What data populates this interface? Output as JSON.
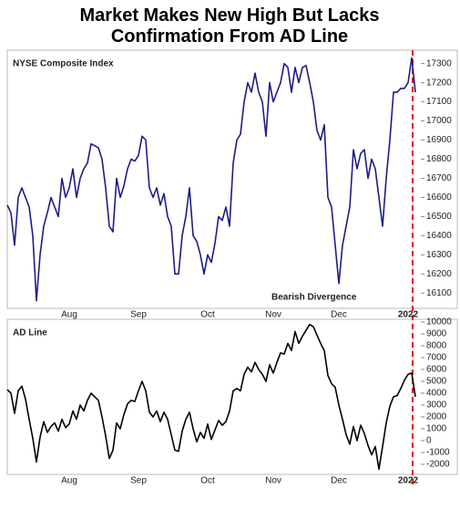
{
  "title": "Market Makes New High But Lacks Confirmation From AD Line",
  "chart_data": [
    {
      "type": "line",
      "title": "NYSE Composite Index",
      "annotation": "Bearish Divergence",
      "categories": [
        null,
        null,
        null,
        null,
        null,
        null,
        null,
        null,
        null,
        null,
        null,
        null,
        null,
        null,
        null,
        null,
        null,
        "Aug",
        null,
        null,
        null,
        null,
        null,
        null,
        null,
        null,
        null,
        null,
        null,
        null,
        null,
        null,
        null,
        null,
        null,
        null,
        "Sep",
        null,
        null,
        null,
        null,
        null,
        null,
        null,
        null,
        null,
        null,
        null,
        null,
        null,
        null,
        null,
        null,
        null,
        null,
        "Oct",
        null,
        null,
        null,
        null,
        null,
        null,
        null,
        null,
        null,
        null,
        null,
        null,
        null,
        null,
        null,
        null,
        null,
        "Nov",
        null,
        null,
        null,
        null,
        null,
        null,
        null,
        null,
        null,
        null,
        null,
        null,
        null,
        null,
        null,
        null,
        null,
        "Dec",
        null,
        null,
        null,
        null,
        null,
        null,
        null,
        null,
        null,
        null,
        null,
        null,
        null,
        null,
        null,
        null,
        null,
        null,
        "2022",
        null,
        null
      ],
      "series": [
        {
          "name": "NYSE Composite Index",
          "color": "#1c1c8a",
          "values": [
            16560,
            16520,
            16350,
            16600,
            16650,
            16600,
            16550,
            16400,
            16060,
            16300,
            16450,
            16520,
            16600,
            16550,
            16500,
            16700,
            16600,
            16650,
            16750,
            16600,
            16700,
            16750,
            16780,
            16880,
            16870,
            16860,
            16800,
            16650,
            16450,
            16420,
            16700,
            16600,
            16660,
            16750,
            16800,
            16790,
            16820,
            16920,
            16900,
            16650,
            16600,
            16650,
            16560,
            16620,
            16500,
            16450,
            16200,
            16200,
            16400,
            16500,
            16650,
            16400,
            16370,
            16300,
            16200,
            16300,
            16260,
            16360,
            16500,
            16480,
            16550,
            16450,
            16780,
            16900,
            16930,
            17100,
            17200,
            17150,
            17250,
            17150,
            17100,
            16920,
            17200,
            17100,
            17150,
            17200,
            17300,
            17280,
            17150,
            17280,
            17200,
            17280,
            17290,
            17200,
            17100,
            16950,
            16900,
            16980,
            16600,
            16550,
            16350,
            16150,
            16350,
            16450,
            16550,
            16850,
            16750,
            16830,
            16850,
            16700,
            16800,
            16750,
            16600,
            16450,
            16700,
            16900,
            17150,
            17150,
            17170,
            17170,
            17200,
            17330,
            17150
          ]
        }
      ],
      "ylim": [
        16020,
        17370
      ],
      "yticks": [
        16100,
        16200,
        16300,
        16400,
        16500,
        16600,
        16700,
        16800,
        16900,
        17000,
        17100,
        17200,
        17300
      ]
    },
    {
      "type": "line",
      "title": "AD Line",
      "categories": [
        null,
        null,
        null,
        null,
        null,
        null,
        null,
        null,
        null,
        null,
        null,
        null,
        null,
        null,
        null,
        null,
        null,
        "Aug",
        null,
        null,
        null,
        null,
        null,
        null,
        null,
        null,
        null,
        null,
        null,
        null,
        null,
        null,
        null,
        null,
        null,
        null,
        "Sep",
        null,
        null,
        null,
        null,
        null,
        null,
        null,
        null,
        null,
        null,
        null,
        null,
        null,
        null,
        null,
        null,
        null,
        null,
        "Oct",
        null,
        null,
        null,
        null,
        null,
        null,
        null,
        null,
        null,
        null,
        null,
        null,
        null,
        null,
        null,
        null,
        null,
        "Nov",
        null,
        null,
        null,
        null,
        null,
        null,
        null,
        null,
        null,
        null,
        null,
        null,
        null,
        null,
        null,
        null,
        null,
        "Dec",
        null,
        null,
        null,
        null,
        null,
        null,
        null,
        null,
        null,
        null,
        null,
        null,
        null,
        null,
        null,
        null,
        null,
        null,
        "2022",
        null,
        null
      ],
      "series": [
        {
          "name": "AD Line",
          "color": "#000000",
          "values": [
            4300,
            4000,
            2300,
            4200,
            4600,
            3500,
            1800,
            200,
            -1800,
            300,
            1600,
            700,
            1200,
            1500,
            800,
            1800,
            1100,
            1400,
            2500,
            1800,
            3000,
            2500,
            3400,
            4000,
            3700,
            3400,
            2000,
            400,
            -1500,
            -800,
            1500,
            1000,
            2200,
            3100,
            3400,
            3300,
            4200,
            5000,
            4200,
            2400,
            2000,
            2500,
            1600,
            2400,
            1800,
            500,
            -800,
            -900,
            800,
            1800,
            2400,
            1000,
            -100,
            700,
            200,
            1400,
            100,
            900,
            1700,
            1300,
            1600,
            2500,
            4200,
            4400,
            4200,
            5600,
            6200,
            5800,
            6600,
            6000,
            5600,
            5000,
            6400,
            5700,
            6600,
            7400,
            7300,
            8200,
            7600,
            9200,
            8200,
            8800,
            9300,
            9800,
            9600,
            8900,
            8200,
            7600,
            5500,
            4800,
            4500,
            3000,
            1800,
            500,
            -300,
            1200,
            0,
            1300,
            600,
            -400,
            -1200,
            -500,
            -2400,
            -500,
            1500,
            2900,
            3700,
            3800,
            4400,
            5100,
            5600,
            5700,
            3700
          ]
        }
      ],
      "ylim": [
        -2850,
        10230
      ],
      "yticks": [
        -2000,
        -1000,
        0,
        1000,
        2000,
        3000,
        4000,
        5000,
        6000,
        7000,
        8000,
        9000,
        10000
      ]
    }
  ]
}
